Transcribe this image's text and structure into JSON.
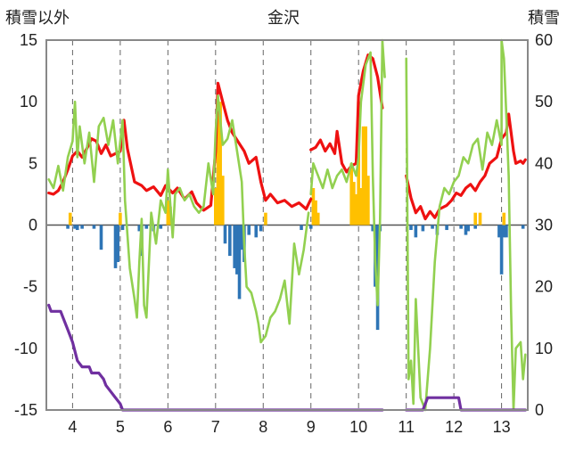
{
  "chart_data": {
    "type": "bar+line",
    "title": "金沢",
    "ylabel_left": "積雪以外",
    "ylabel_right": "積雪",
    "xticks": [
      "4",
      "5",
      "6",
      "7",
      "8",
      "9",
      "10",
      "11",
      "12",
      "13"
    ],
    "x_range": [
      3.45,
      13.55
    ],
    "y_left_range": [
      -15,
      15
    ],
    "y_left_ticks": [
      "15",
      "10",
      "5",
      "0",
      "-5",
      "-10",
      "-15"
    ],
    "y_right_range": [
      0,
      60
    ],
    "y_right_ticks": [
      "60",
      "50",
      "40",
      "30",
      "20",
      "10",
      "0"
    ],
    "grid": "vertical dashed",
    "colors": {
      "temp_line": "#ee1111",
      "green_line": "#92d050",
      "snow_line": "#7030a0",
      "bar_positive": "#ffc000",
      "bar_negative": "#2e75b6",
      "axis": "#888888",
      "zero_line": "#555555"
    },
    "series": [
      {
        "type": "line",
        "axis": "left",
        "color": "#ee1111",
        "segments": [
          [
            [
              3.5,
              2.6
            ],
            [
              3.6,
              2.5
            ],
            [
              3.7,
              2.8
            ],
            [
              3.8,
              3.5
            ],
            [
              3.9,
              4.5
            ],
            [
              4.0,
              5.6
            ],
            [
              4.1,
              6.0
            ],
            [
              4.2,
              5.5
            ],
            [
              4.3,
              6.2
            ],
            [
              4.4,
              7.0
            ],
            [
              4.5,
              6.8
            ],
            [
              4.6,
              5.8
            ],
            [
              4.7,
              6.5
            ],
            [
              4.8,
              5.6
            ],
            [
              4.9,
              5.8
            ],
            [
              5.0,
              6.0
            ],
            [
              5.08,
              8.5
            ],
            [
              5.15,
              6.2
            ],
            [
              5.3,
              3.5
            ],
            [
              5.45,
              3.2
            ],
            [
              5.55,
              2.8
            ],
            [
              5.7,
              3.1
            ],
            [
              5.85,
              2.4
            ],
            [
              5.95,
              3.2
            ],
            [
              6.1,
              2.6
            ],
            [
              6.2,
              3.0
            ],
            [
              6.35,
              2.1
            ],
            [
              6.5,
              2.7
            ],
            [
              6.6,
              1.8
            ],
            [
              6.75,
              1.2
            ],
            [
              6.9,
              1.6
            ],
            [
              7.0,
              6.0
            ],
            [
              7.05,
              11.5
            ],
            [
              7.15,
              10.0
            ],
            [
              7.25,
              8.5
            ],
            [
              7.35,
              7.5
            ],
            [
              7.5,
              6.6
            ],
            [
              7.6,
              6.0
            ],
            [
              7.7,
              5.0
            ],
            [
              7.85,
              5.5
            ],
            [
              7.95,
              3.5
            ],
            [
              8.05,
              2.0
            ],
            [
              8.15,
              2.5
            ],
            [
              8.3,
              1.8
            ],
            [
              8.45,
              2.0
            ],
            [
              8.6,
              1.5
            ],
            [
              8.75,
              1.8
            ],
            [
              8.9,
              1.3
            ],
            [
              9.0,
              2.1
            ]
          ],
          [
            [
              9.0,
              6.1
            ],
            [
              9.1,
              6.3
            ],
            [
              9.2,
              6.9
            ],
            [
              9.3,
              6.0
            ],
            [
              9.4,
              6.6
            ],
            [
              9.5,
              5.8
            ],
            [
              9.55,
              7.6
            ],
            [
              9.65,
              5.0
            ],
            [
              9.75,
              4.3
            ],
            [
              9.85,
              4.8
            ],
            [
              9.95,
              5.0
            ],
            [
              10.0,
              10.5
            ],
            [
              10.1,
              12.5
            ],
            [
              10.2,
              13.8
            ],
            [
              10.3,
              13.5
            ],
            [
              10.4,
              12.0
            ],
            [
              10.5,
              9.5
            ]
          ],
          [
            [
              11.0,
              4.0
            ],
            [
              11.1,
              2.2
            ],
            [
              11.2,
              1.0
            ],
            [
              11.3,
              1.5
            ],
            [
              11.4,
              0.5
            ],
            [
              11.5,
              1.1
            ],
            [
              11.6,
              0.6
            ],
            [
              11.7,
              1.3
            ],
            [
              11.85,
              1.6
            ],
            [
              11.95,
              2.0
            ],
            [
              12.05,
              2.6
            ],
            [
              12.15,
              2.4
            ],
            [
              12.25,
              3.0
            ],
            [
              12.35,
              3.3
            ],
            [
              12.45,
              2.8
            ],
            [
              12.55,
              3.5
            ],
            [
              12.65,
              4.0
            ],
            [
              12.75,
              5.0
            ],
            [
              12.9,
              5.5
            ],
            [
              13.0,
              7.0
            ],
            [
              13.1,
              7.5
            ],
            [
              13.15,
              9.0
            ],
            [
              13.25,
              6.0
            ],
            [
              13.3,
              5.0
            ],
            [
              13.4,
              5.2
            ],
            [
              13.45,
              5.0
            ],
            [
              13.5,
              5.3
            ]
          ]
        ]
      },
      {
        "type": "line",
        "axis": "left",
        "color": "#92d050",
        "segments": [
          [
            [
              3.5,
              3.7
            ],
            [
              3.6,
              3.0
            ],
            [
              3.7,
              4.8
            ],
            [
              3.8,
              2.8
            ],
            [
              3.9,
              5.5
            ],
            [
              4.0,
              6.8
            ],
            [
              4.05,
              10.0
            ],
            [
              4.1,
              5.5
            ],
            [
              4.15,
              8.0
            ],
            [
              4.25,
              5.0
            ],
            [
              4.35,
              7.5
            ],
            [
              4.45,
              3.5
            ],
            [
              4.55,
              8.0
            ],
            [
              4.65,
              8.7
            ],
            [
              4.75,
              6.5
            ],
            [
              4.85,
              8.5
            ],
            [
              4.95,
              5.0
            ],
            [
              5.05,
              8.5
            ],
            [
              5.1,
              2.0
            ],
            [
              5.2,
              -3.5
            ],
            [
              5.3,
              -6.0
            ],
            [
              5.35,
              -7.5
            ],
            [
              5.4,
              -3.0
            ],
            [
              5.45,
              0.5
            ],
            [
              5.5,
              -6.5
            ],
            [
              5.55,
              -7.5
            ],
            [
              5.65,
              1.0
            ],
            [
              5.75,
              -1.5
            ],
            [
              5.85,
              2.0
            ],
            [
              5.95,
              1.0
            ],
            [
              6.0,
              4.5
            ],
            [
              6.1,
              -1.0
            ],
            [
              6.15,
              2.5
            ],
            [
              6.25,
              3.0
            ],
            [
              6.35,
              2.0
            ],
            [
              6.45,
              2.5
            ],
            [
              6.55,
              1.5
            ],
            [
              6.65,
              1.0
            ],
            [
              6.75,
              1.5
            ],
            [
              6.85,
              5.0
            ],
            [
              6.95,
              2.5
            ],
            [
              7.0,
              7.5
            ],
            [
              7.05,
              10.5
            ],
            [
              7.15,
              6.5
            ],
            [
              7.25,
              7.0
            ],
            [
              7.35,
              8.5
            ],
            [
              7.45,
              6.0
            ],
            [
              7.55,
              3.5
            ],
            [
              7.6,
              -1.5
            ],
            [
              7.65,
              -5.0
            ],
            [
              7.75,
              -5.5
            ],
            [
              7.85,
              -7.0
            ],
            [
              7.9,
              -8.0
            ],
            [
              7.95,
              -9.5
            ],
            [
              8.05,
              -9.0
            ],
            [
              8.15,
              -7.5
            ],
            [
              8.25,
              -7.0
            ],
            [
              8.35,
              -6.0
            ],
            [
              8.45,
              -4.5
            ],
            [
              8.55,
              -8.0
            ],
            [
              8.65,
              -1.5
            ],
            [
              8.75,
              -4.0
            ],
            [
              8.85,
              -2.0
            ],
            [
              8.95,
              1.0
            ]
          ],
          [
            [
              9.0,
              2.5
            ],
            [
              9.05,
              5.0
            ],
            [
              9.15,
              4.0
            ],
            [
              9.25,
              3.0
            ],
            [
              9.35,
              4.5
            ],
            [
              9.45,
              3.0
            ],
            [
              9.55,
              4.0
            ],
            [
              9.65,
              4.5
            ],
            [
              9.75,
              3.5
            ],
            [
              9.85,
              5.0
            ],
            [
              9.95,
              4.0
            ],
            [
              10.0,
              5.5
            ],
            [
              10.05,
              10.0
            ],
            [
              10.15,
              13.0
            ],
            [
              10.25,
              14.0
            ],
            [
              10.3,
              4.0
            ],
            [
              10.35,
              -3.0
            ],
            [
              10.4,
              -6.5
            ],
            [
              10.45,
              0.5
            ],
            [
              10.5,
              15.0
            ],
            [
              10.55,
              12.0
            ]
          ],
          [
            [
              11.0,
              13.5
            ],
            [
              11.05,
              -12.5
            ],
            [
              11.1,
              -11.0
            ],
            [
              11.15,
              -14.5
            ],
            [
              11.2,
              -6.0
            ],
            [
              11.3,
              -14.0
            ],
            [
              11.4,
              -15.0
            ],
            [
              11.5,
              -10.0
            ],
            [
              11.6,
              -3.0
            ],
            [
              11.7,
              1.5
            ],
            [
              11.8,
              3.0
            ],
            [
              11.9,
              2.5
            ],
            [
              12.0,
              3.5
            ],
            [
              12.1,
              4.0
            ],
            [
              12.2,
              5.5
            ],
            [
              12.3,
              5.0
            ],
            [
              12.4,
              6.5
            ],
            [
              12.5,
              7.0
            ],
            [
              12.6,
              4.5
            ],
            [
              12.7,
              7.5
            ],
            [
              12.8,
              6.5
            ],
            [
              12.9,
              8.5
            ],
            [
              13.0,
              6.5
            ],
            [
              13.0,
              15.0
            ],
            [
              13.05,
              13.5
            ],
            [
              13.1,
              9.0
            ],
            [
              13.15,
              4.0
            ],
            [
              13.2,
              -7.0
            ],
            [
              13.25,
              -15.0
            ],
            [
              13.3,
              -10.0
            ],
            [
              13.4,
              -9.5
            ],
            [
              13.45,
              -12.5
            ],
            [
              13.5,
              -10.5
            ]
          ]
        ]
      },
      {
        "type": "line",
        "axis": "right",
        "color": "#7030a0",
        "segments": [
          [
            [
              3.5,
              17
            ],
            [
              3.55,
              16
            ],
            [
              3.75,
              16
            ],
            [
              3.8,
              15
            ],
            [
              3.9,
              13
            ],
            [
              4.0,
              11
            ],
            [
              4.1,
              8
            ],
            [
              4.2,
              7
            ],
            [
              4.35,
              7
            ],
            [
              4.4,
              6
            ],
            [
              4.55,
              6
            ],
            [
              4.65,
              5
            ],
            [
              4.7,
              4
            ],
            [
              4.8,
              3
            ],
            [
              4.9,
              2
            ],
            [
              5.0,
              1
            ],
            [
              5.05,
              0
            ],
            [
              10.5,
              0
            ]
          ],
          [
            [
              11.0,
              0
            ],
            [
              11.35,
              0
            ],
            [
              11.45,
              2
            ],
            [
              11.55,
              2
            ],
            [
              12.1,
              2
            ],
            [
              12.15,
              0
            ],
            [
              13.5,
              0
            ]
          ]
        ]
      },
      {
        "type": "bar",
        "axis": "left",
        "name": "positive",
        "color": "#ffc000",
        "x": [
          3.95,
          5.0,
          6.0,
          6.05,
          7.0,
          7.05,
          7.1,
          7.15,
          8.05,
          9.05,
          9.1,
          9.15,
          9.85,
          9.9,
          9.95,
          10.0,
          10.05,
          10.1,
          10.15,
          10.2,
          12.45,
          12.55,
          13.05
        ],
        "values": [
          1.0,
          1.0,
          2.0,
          1.5,
          3.0,
          9.5,
          10.0,
          4.0,
          1.0,
          3.0,
          2.0,
          1.0,
          5.0,
          3.5,
          2.5,
          10.0,
          3.0,
          8.0,
          8.0,
          4.0,
          1.0,
          1.0,
          1.0
        ]
      },
      {
        "type": "bar",
        "axis": "left",
        "name": "negative",
        "color": "#2e75b6",
        "x": [
          3.9,
          4.05,
          4.1,
          4.2,
          4.45,
          4.6,
          4.9,
          4.95,
          5.05,
          5.4,
          5.45,
          5.55,
          5.7,
          5.85,
          7.2,
          7.3,
          7.4,
          7.45,
          7.5,
          7.55,
          7.6,
          7.7,
          7.85,
          7.95,
          8.8,
          9.0,
          10.3,
          10.35,
          10.4,
          10.45,
          11.1,
          11.2,
          11.35,
          11.55,
          11.65,
          11.85,
          12.15,
          12.25,
          12.3,
          12.45,
          12.95,
          13.0,
          13.05,
          13.1,
          13.45
        ],
        "values": [
          -0.3,
          -0.3,
          -0.4,
          -0.3,
          -0.3,
          -2.0,
          -3.5,
          -3.0,
          -0.4,
          -0.5,
          -2.5,
          -0.3,
          -0.5,
          -0.3,
          -1.5,
          -2.5,
          -3.5,
          -4.0,
          -6.0,
          -2.0,
          -3.0,
          -0.8,
          -1.0,
          -0.5,
          -0.4,
          -0.3,
          -0.5,
          -5.0,
          -8.5,
          -0.5,
          -0.4,
          -1.0,
          -0.5,
          -0.3,
          -0.8,
          -0.4,
          -0.3,
          -0.8,
          -0.5,
          -0.3,
          -1.0,
          -4.0,
          -1.0,
          -1.0,
          -0.3
        ]
      }
    ]
  }
}
